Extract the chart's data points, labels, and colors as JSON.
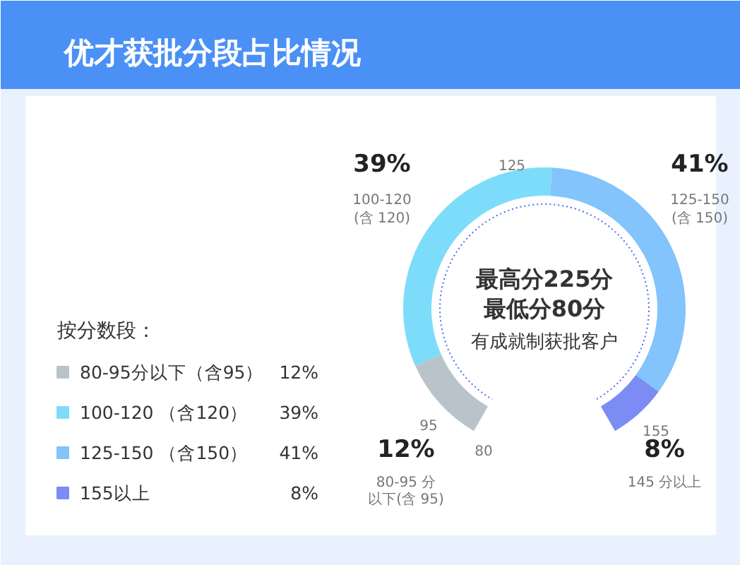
{
  "chart_data": {
    "type": "donut",
    "title": "优才获批分段占比情况",
    "legend_title": "按分数段：",
    "legend": "left",
    "categories": [
      "80-95分以下（含95）",
      "100-120 （含120）",
      "125-150 （含150）",
      "155以上"
    ],
    "values": [
      12,
      39,
      41,
      8
    ],
    "value_labels": [
      "12%",
      "39%",
      "41%",
      "8%"
    ],
    "colors": [
      "#b9c4ca",
      "#7ddcf9",
      "#82c4fb",
      "#7b8cf5"
    ],
    "annotations": [
      "以下(含 95)",
      "80-95 分",
      "100-120\n(含 120)",
      "125-150\n(含 150)",
      "145 分以上",
      "80",
      "95",
      "125",
      "155",
      "最高分225分",
      "最低分80分",
      "有成就制获批客户"
    ]
  }
}
